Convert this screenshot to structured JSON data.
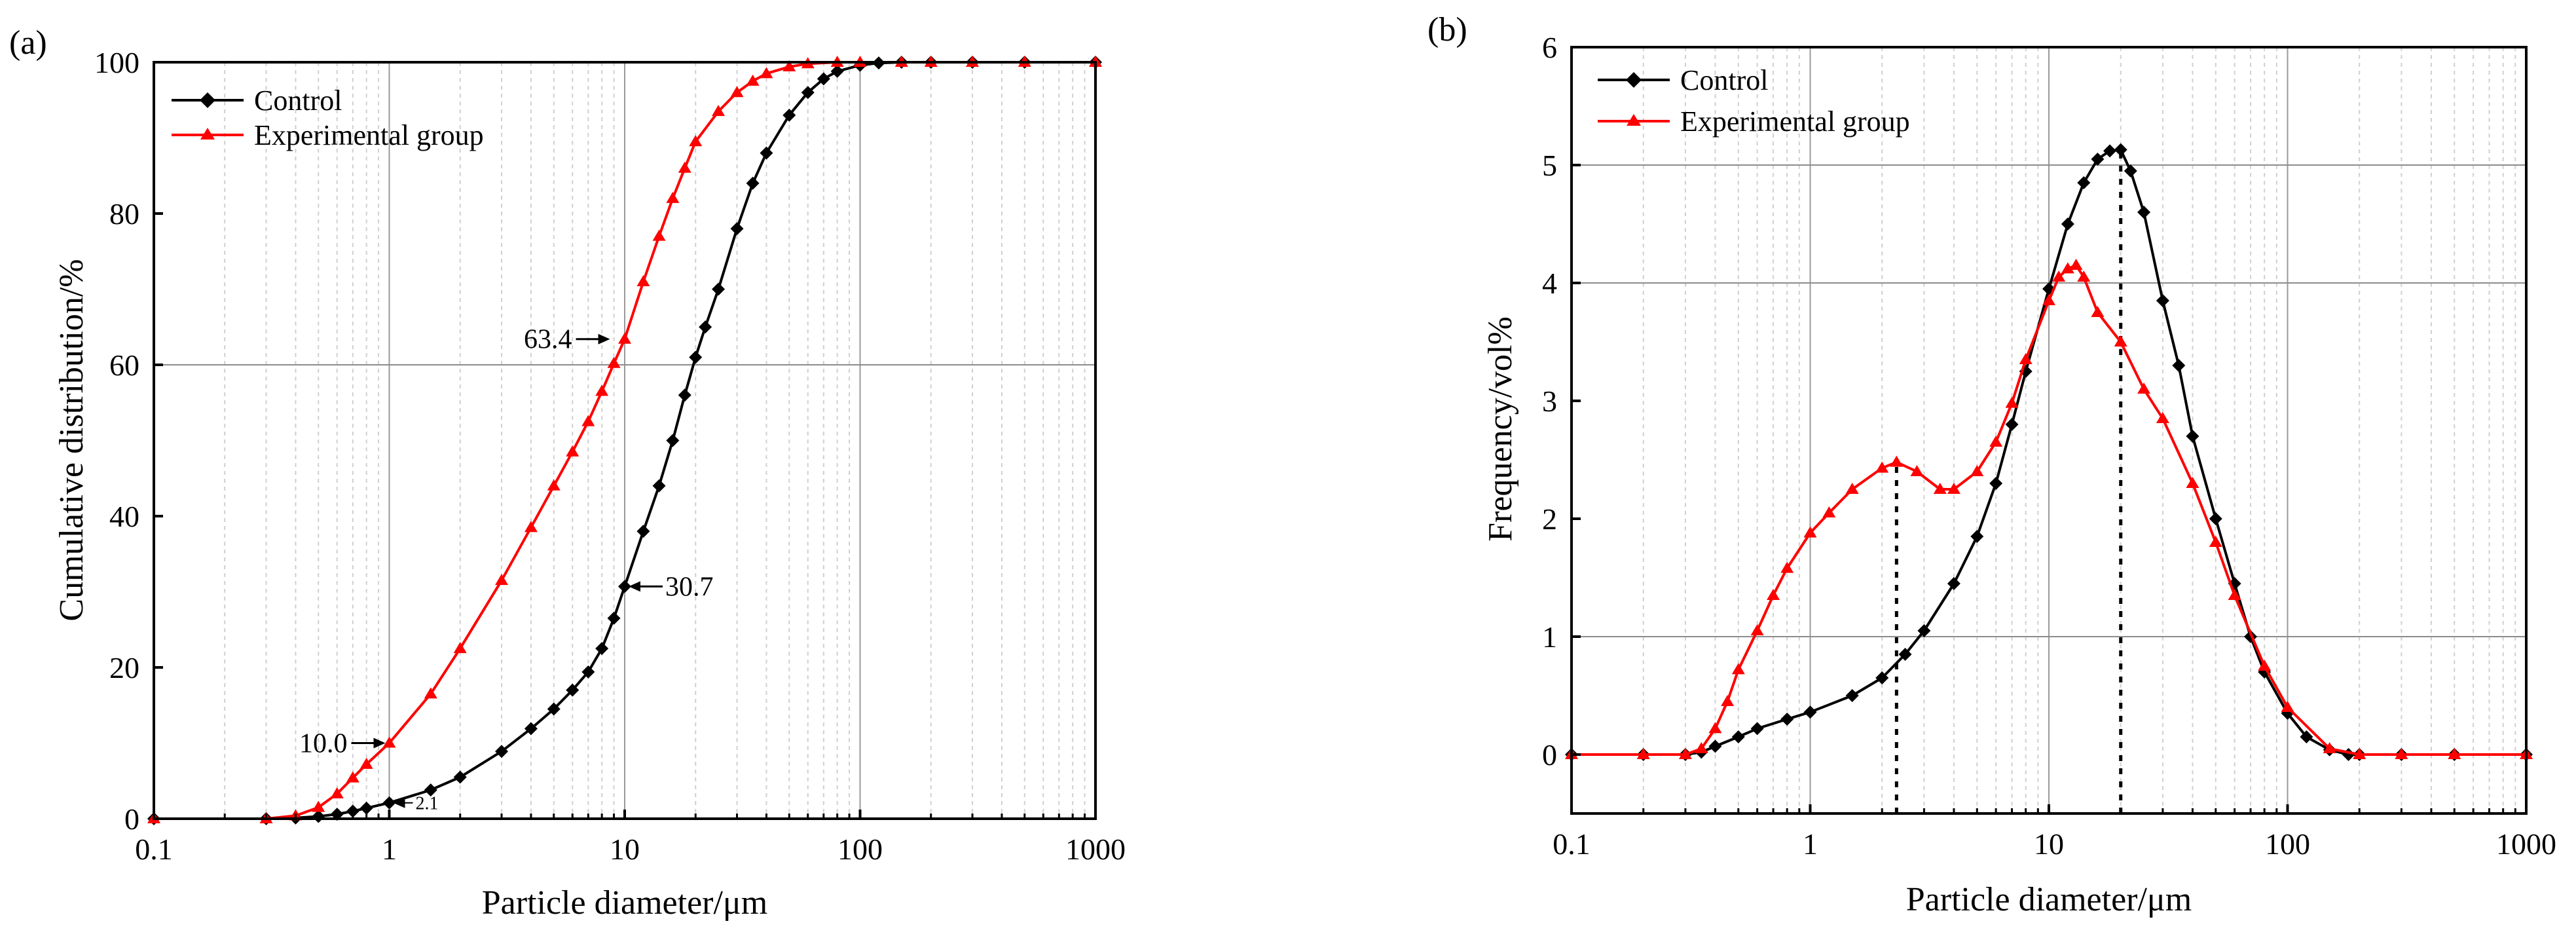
{
  "figure": {
    "colors": {
      "control": "#000000",
      "experimental": "#ff0000",
      "grid_major": "#9a9a9a",
      "grid_minor": "#d0d0d0"
    }
  },
  "chart_data": [
    {
      "type": "line",
      "panel_label": "(a)",
      "title": "",
      "xlabel": "Particle diameter/μm",
      "ylabel": "Cumulative distribution/%",
      "xscale": "log",
      "xlim": [
        0.1,
        1000
      ],
      "ylim": [
        0,
        100
      ],
      "xticks": [
        0.1,
        1,
        10,
        100,
        1000
      ],
      "xtick_labels": [
        "0.1",
        "1",
        "10",
        "100",
        "1000"
      ],
      "yticks": [
        0,
        20,
        40,
        60,
        80,
        100
      ],
      "ytick_labels": [
        "0",
        "20",
        "40",
        "60",
        "80",
        "100"
      ],
      "hlines": [
        60
      ],
      "legend": [
        "Control",
        "Experimental group"
      ],
      "legend_position": "top-left",
      "series": [
        {
          "name": "Control",
          "marker": "diamond",
          "x": [
            0.1,
            0.3,
            0.4,
            0.5,
            0.6,
            0.7,
            0.8,
            1,
            1.5,
            2,
            3,
            4,
            5,
            6,
            7,
            8,
            9,
            10,
            12,
            14,
            16,
            18,
            20,
            22,
            25,
            30,
            35,
            40,
            50,
            60,
            70,
            80,
            100,
            120,
            150,
            200,
            300,
            500,
            1000
          ],
          "values": [
            0,
            0,
            0.1,
            0.3,
            0.6,
            1.0,
            1.4,
            2.1,
            3.8,
            5.5,
            8.9,
            11.9,
            14.5,
            17.0,
            19.4,
            22.5,
            26.5,
            30.7,
            38,
            44,
            50,
            56,
            61,
            65,
            70,
            78,
            84,
            88,
            93,
            96,
            97.8,
            98.8,
            99.6,
            99.9,
            100,
            100,
            100,
            100,
            100
          ]
        },
        {
          "name": "Experimental group",
          "marker": "triangle",
          "x": [
            0.1,
            0.3,
            0.4,
            0.5,
            0.6,
            0.7,
            0.8,
            1,
            1.5,
            2,
            3,
            4,
            5,
            6,
            7,
            8,
            9,
            10,
            12,
            14,
            16,
            18,
            20,
            25,
            30,
            35,
            40,
            50,
            60,
            80,
            100,
            150,
            200,
            300,
            500,
            1000
          ],
          "values": [
            0,
            0,
            0.4,
            1.5,
            3.3,
            5.4,
            7.2,
            10.0,
            16.5,
            22.5,
            31.5,
            38.5,
            44,
            48.5,
            52.5,
            56.5,
            60.2,
            63.4,
            71,
            77,
            82,
            86,
            89.5,
            93.5,
            96,
            97.5,
            98.5,
            99.4,
            99.8,
            100,
            100,
            100,
            100,
            100,
            100,
            100
          ]
        }
      ],
      "annotations": [
        {
          "text": "63.4",
          "x": 9,
          "y": 63.4,
          "arrow_to": "right",
          "style": "normal"
        },
        {
          "text": "30.7",
          "x": 10,
          "y": 30.7,
          "arrow_to": "left",
          "style": "normal"
        },
        {
          "text": "10.0",
          "x": 1,
          "y": 10.0,
          "arrow_to": "right",
          "style": "normal"
        },
        {
          "text": "2.1",
          "x": 1,
          "y": 2.1,
          "arrow_to": "left",
          "style": "small"
        }
      ]
    },
    {
      "type": "line",
      "panel_label": "(b)",
      "title": "",
      "xlabel": "Particle diameter/μm",
      "ylabel": "Frequency/vol%",
      "xscale": "log",
      "xlim": [
        0.1,
        1000
      ],
      "ylim": [
        -0.5,
        6
      ],
      "xticks": [
        0.1,
        1,
        10,
        100,
        1000
      ],
      "xtick_labels": [
        "0.1",
        "1",
        "10",
        "100",
        "1000"
      ],
      "yticks": [
        0,
        1,
        2,
        3,
        4,
        5,
        6
      ],
      "ytick_labels": [
        "0",
        "1",
        "2",
        "3",
        "4",
        "5",
        "6"
      ],
      "hlines": [
        1,
        4,
        5
      ],
      "vlines_dotted": [
        {
          "x": 2.3,
          "ymin": -0.5,
          "ymax": 2.5
        },
        {
          "x": 20,
          "ymin": -0.5,
          "ymax": 5.1
        }
      ],
      "legend": [
        "Control",
        "Experimental group"
      ],
      "legend_position": "top-left",
      "series": [
        {
          "name": "Control",
          "marker": "diamond",
          "x": [
            0.1,
            0.2,
            0.3,
            0.35,
            0.4,
            0.5,
            0.6,
            0.8,
            1,
            1.5,
            2,
            2.5,
            3,
            4,
            5,
            6,
            7,
            8,
            10,
            12,
            14,
            16,
            18,
            20,
            22,
            25,
            30,
            35,
            40,
            50,
            60,
            70,
            80,
            100,
            120,
            150,
            180,
            200,
            300,
            500,
            1000
          ],
          "values": [
            0,
            0,
            0,
            0.02,
            0.07,
            0.15,
            0.22,
            0.3,
            0.36,
            0.5,
            0.65,
            0.85,
            1.05,
            1.45,
            1.85,
            2.3,
            2.8,
            3.25,
            3.95,
            4.5,
            4.85,
            5.05,
            5.12,
            5.13,
            4.95,
            4.6,
            3.85,
            3.3,
            2.7,
            2.0,
            1.45,
            1.0,
            0.7,
            0.35,
            0.15,
            0.04,
            0,
            0,
            0,
            0,
            0
          ]
        },
        {
          "name": "Experimental group",
          "marker": "triangle",
          "x": [
            0.1,
            0.2,
            0.3,
            0.35,
            0.4,
            0.45,
            0.5,
            0.6,
            0.7,
            0.8,
            1,
            1.2,
            1.5,
            2,
            2.3,
            2.8,
            3.5,
            4,
            5,
            6,
            7,
            8,
            10,
            11,
            12,
            13,
            14,
            16,
            20,
            25,
            30,
            40,
            50,
            60,
            80,
            100,
            150,
            200,
            300,
            500,
            1000
          ],
          "values": [
            0,
            0,
            0,
            0.05,
            0.22,
            0.45,
            0.72,
            1.05,
            1.35,
            1.58,
            1.88,
            2.05,
            2.25,
            2.43,
            2.48,
            2.4,
            2.25,
            2.25,
            2.4,
            2.65,
            2.98,
            3.35,
            3.85,
            4.05,
            4.12,
            4.15,
            4.05,
            3.75,
            3.5,
            3.1,
            2.85,
            2.3,
            1.8,
            1.35,
            0.75,
            0.4,
            0.05,
            0,
            0,
            0,
            0
          ]
        }
      ]
    }
  ]
}
